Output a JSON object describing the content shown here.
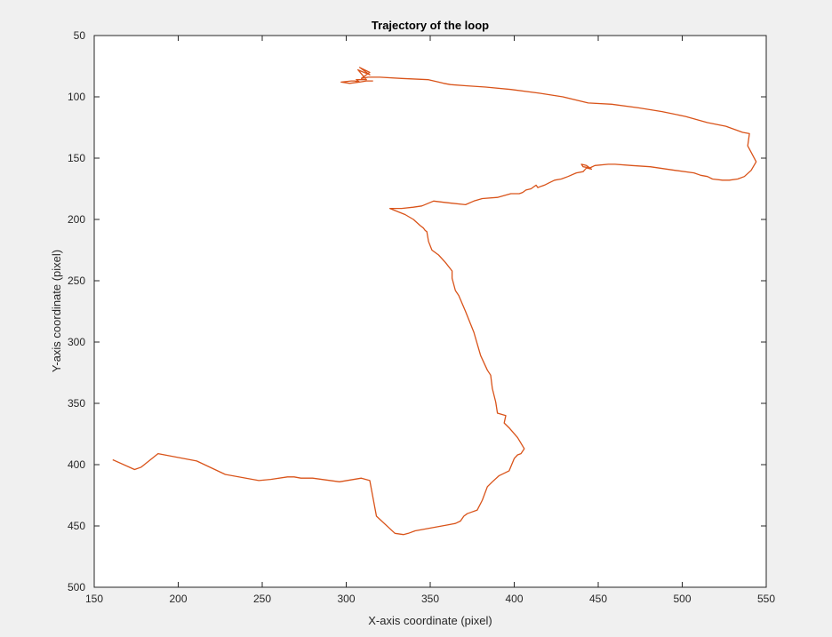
{
  "chart_data": {
    "type": "line",
    "title": "Trajectory of the loop",
    "xlabel": "X-axis coordinate (pixel)",
    "ylabel": "Y-axis coordinate (pixel)",
    "xlim": [
      150,
      550
    ],
    "ylim": [
      50,
      500
    ],
    "y_direction": "reversed",
    "grid": false,
    "box": true,
    "xticks": [
      150,
      200,
      250,
      300,
      350,
      400,
      450,
      500,
      550
    ],
    "yticks": [
      50,
      100,
      150,
      200,
      250,
      300,
      350,
      400,
      450,
      500
    ],
    "series": [
      {
        "color": "#d95319",
        "x": [
          161,
          174,
          178,
          188,
          211,
          228,
          248,
          255,
          265,
          269,
          273,
          280,
          296,
          309,
          314,
          318,
          329,
          334,
          337,
          341,
          361,
          365,
          368,
          370,
          372,
          374,
          378,
          381,
          384,
          387,
          391,
          394,
          397,
          400,
          402,
          404,
          406,
          402,
          397,
          394,
          395,
          390,
          389,
          387,
          386,
          384,
          380,
          376,
          371,
          367,
          365,
          363,
          363,
          359,
          355,
          351,
          349,
          348,
          347,
          346,
          344,
          340,
          335,
          326,
          333,
          340,
          345,
          352,
          358,
          371,
          376,
          381,
          390,
          398,
          403,
          405,
          407,
          410,
          413,
          414,
          416,
          418,
          421,
          424,
          428,
          432,
          437,
          441,
          443,
          446,
          443,
          440,
          441,
          445,
          448,
          456,
          460,
          470,
          481,
          496,
          507,
          511,
          515,
          518,
          524,
          528,
          533,
          537,
          541,
          544,
          539,
          540,
          536,
          526,
          515,
          502,
          488,
          474,
          458,
          444,
          429,
          415,
          398,
          383,
          372,
          362,
          358,
          355,
          349,
          333,
          320,
          316,
          313,
          309,
          314,
          308,
          314,
          307,
          312,
          306,
          308,
          302,
          297,
          303,
          305,
          308,
          312,
          316
        ],
        "y": [
          396,
          404,
          402,
          391,
          397,
          408,
          413,
          412,
          410,
          410,
          411,
          411,
          414,
          411,
          413,
          442,
          456,
          457,
          456,
          454,
          449,
          448,
          446,
          442,
          440,
          439,
          437,
          429,
          418,
          414,
          409,
          407,
          405,
          395,
          392,
          391,
          387,
          378,
          370,
          366,
          360,
          358,
          349,
          338,
          327,
          323,
          311,
          292,
          275,
          262,
          258,
          248,
          242,
          235,
          229,
          225,
          218,
          210,
          209,
          207,
          205,
          200,
          196,
          191,
          191,
          190,
          189,
          185,
          186,
          188,
          185,
          183,
          182,
          179,
          179,
          178,
          176,
          175,
          172,
          174,
          173,
          172,
          170,
          168,
          167,
          165,
          162,
          161,
          158,
          159,
          156,
          155,
          157,
          158,
          156,
          155,
          155,
          156,
          157,
          160,
          162,
          164,
          165,
          167,
          168,
          168,
          167,
          165,
          160,
          153,
          140,
          130,
          129,
          124,
          121,
          116,
          112,
          109,
          106,
          105,
          100,
          97,
          94,
          92,
          91,
          90,
          89,
          88,
          86,
          85,
          84,
          84,
          84,
          85,
          80,
          76,
          82,
          78,
          86,
          86,
          88,
          89,
          88,
          87,
          87,
          88,
          87,
          87
        ]
      }
    ]
  }
}
